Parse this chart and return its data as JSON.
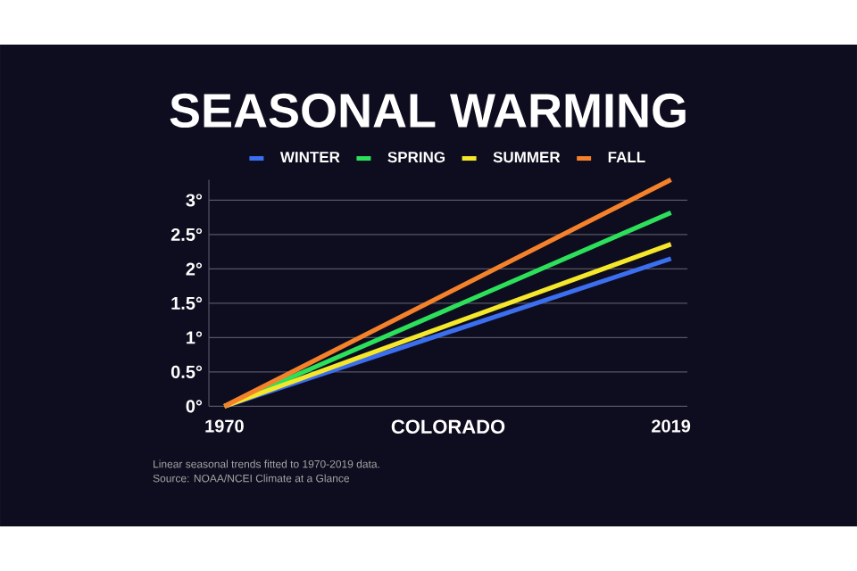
{
  "chart_data": {
    "type": "line",
    "title": "SEASONAL WARMING",
    "xlabel": "COLORADO",
    "x": [
      1970,
      2019
    ],
    "series": [
      {
        "name": "WINTER",
        "color": "#3b6ff0",
        "values": [
          0,
          2.15
        ]
      },
      {
        "name": "SPRING",
        "color": "#2de05a",
        "values": [
          0,
          2.82
        ]
      },
      {
        "name": "SUMMER",
        "color": "#f5e82a",
        "values": [
          0,
          2.36
        ]
      },
      {
        "name": "FALL",
        "color": "#f5822a",
        "values": [
          0,
          3.3
        ]
      }
    ],
    "xlim": [
      1968.3,
      2020.8
    ],
    "xticks": [
      1970,
      2019
    ],
    "yticks": [
      {
        "value": 0,
        "label": "0°"
      },
      {
        "value": 0.5,
        "label": "0.5°"
      },
      {
        "value": 1,
        "label": "1°"
      },
      {
        "value": 1.5,
        "label": "1.5°"
      },
      {
        "value": 2,
        "label": "2°"
      },
      {
        "value": 2.5,
        "label": "2.5°"
      },
      {
        "value": 3,
        "label": "3°"
      }
    ],
    "ylim": [
      0,
      3.3
    ],
    "grid": "y",
    "legend": "top",
    "annotations": [
      "Linear seasonal trends fitted to 1970-2019 data.",
      "Source: NOAA/NCEI Climate at a Glance"
    ]
  }
}
